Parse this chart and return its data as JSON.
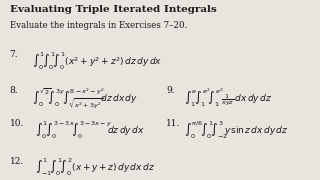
{
  "title": "Evaluating Triple Iterated Integrals",
  "subtitle": "Evaluate the integrals in Exercises 7–20.",
  "background_color": "#e8e4de",
  "text_color": "#1a1a1a",
  "title_fontsize": 7.5,
  "subtitle_fontsize": 6.2,
  "math_fontsize": 6.5,
  "lines": [
    {
      "num": "7.",
      "nx": 0.03,
      "ny": 0.72,
      "math": "$\\int_0^{1}\\!\\int_0^{1}\\!\\int_0^{1}(x^2+y^2+z^2)\\,dz\\,dy\\,dx$",
      "mx": 0.1,
      "my": 0.72
    },
    {
      "num": "8.",
      "nx": 0.03,
      "ny": 0.52,
      "math": "$\\int_0^{\\sqrt{2}}\\!\\int_0^{3y}\\!\\int_{\\sqrt{x^2+3y^2}}^{8-x^2-y^2}\\!\\!dz\\,dx\\,dy$",
      "mx": 0.1,
      "my": 0.52,
      "num2": "9.",
      "nx2": 0.52,
      "ny2": 0.52,
      "math2": "$\\int_1^{e}\\!\\int_1^{e^2}\\!\\int_1^{e^3}\\!\\frac{1}{xyz}\\,dx\\,dy\\,dz$",
      "mx2": 0.575,
      "my2": 0.52
    },
    {
      "num": "10.",
      "nx": 0.03,
      "ny": 0.34,
      "math": "$\\int_0^{1}\\!\\int_0^{3-3x}\\!\\int_0^{3-3x-y}\\!\\!dz\\,dy\\,dx$",
      "mx": 0.11,
      "my": 0.34,
      "num2": "11.",
      "nx2": 0.52,
      "ny2": 0.34,
      "math2": "$\\int_0^{\\pi/6}\\!\\int_0^{1}\\!\\int_{-2}^{3}\\!y\\sin z\\,dx\\,dy\\,dz$",
      "mx2": 0.575,
      "my2": 0.34
    },
    {
      "num": "12.",
      "nx": 0.03,
      "ny": 0.13,
      "math": "$\\int_{-1}^{1}\\!\\int_0^{1}\\!\\int_0^{2}(x+y+z)\\,dy\\,dx\\,dz$",
      "mx": 0.11,
      "my": 0.13
    }
  ]
}
